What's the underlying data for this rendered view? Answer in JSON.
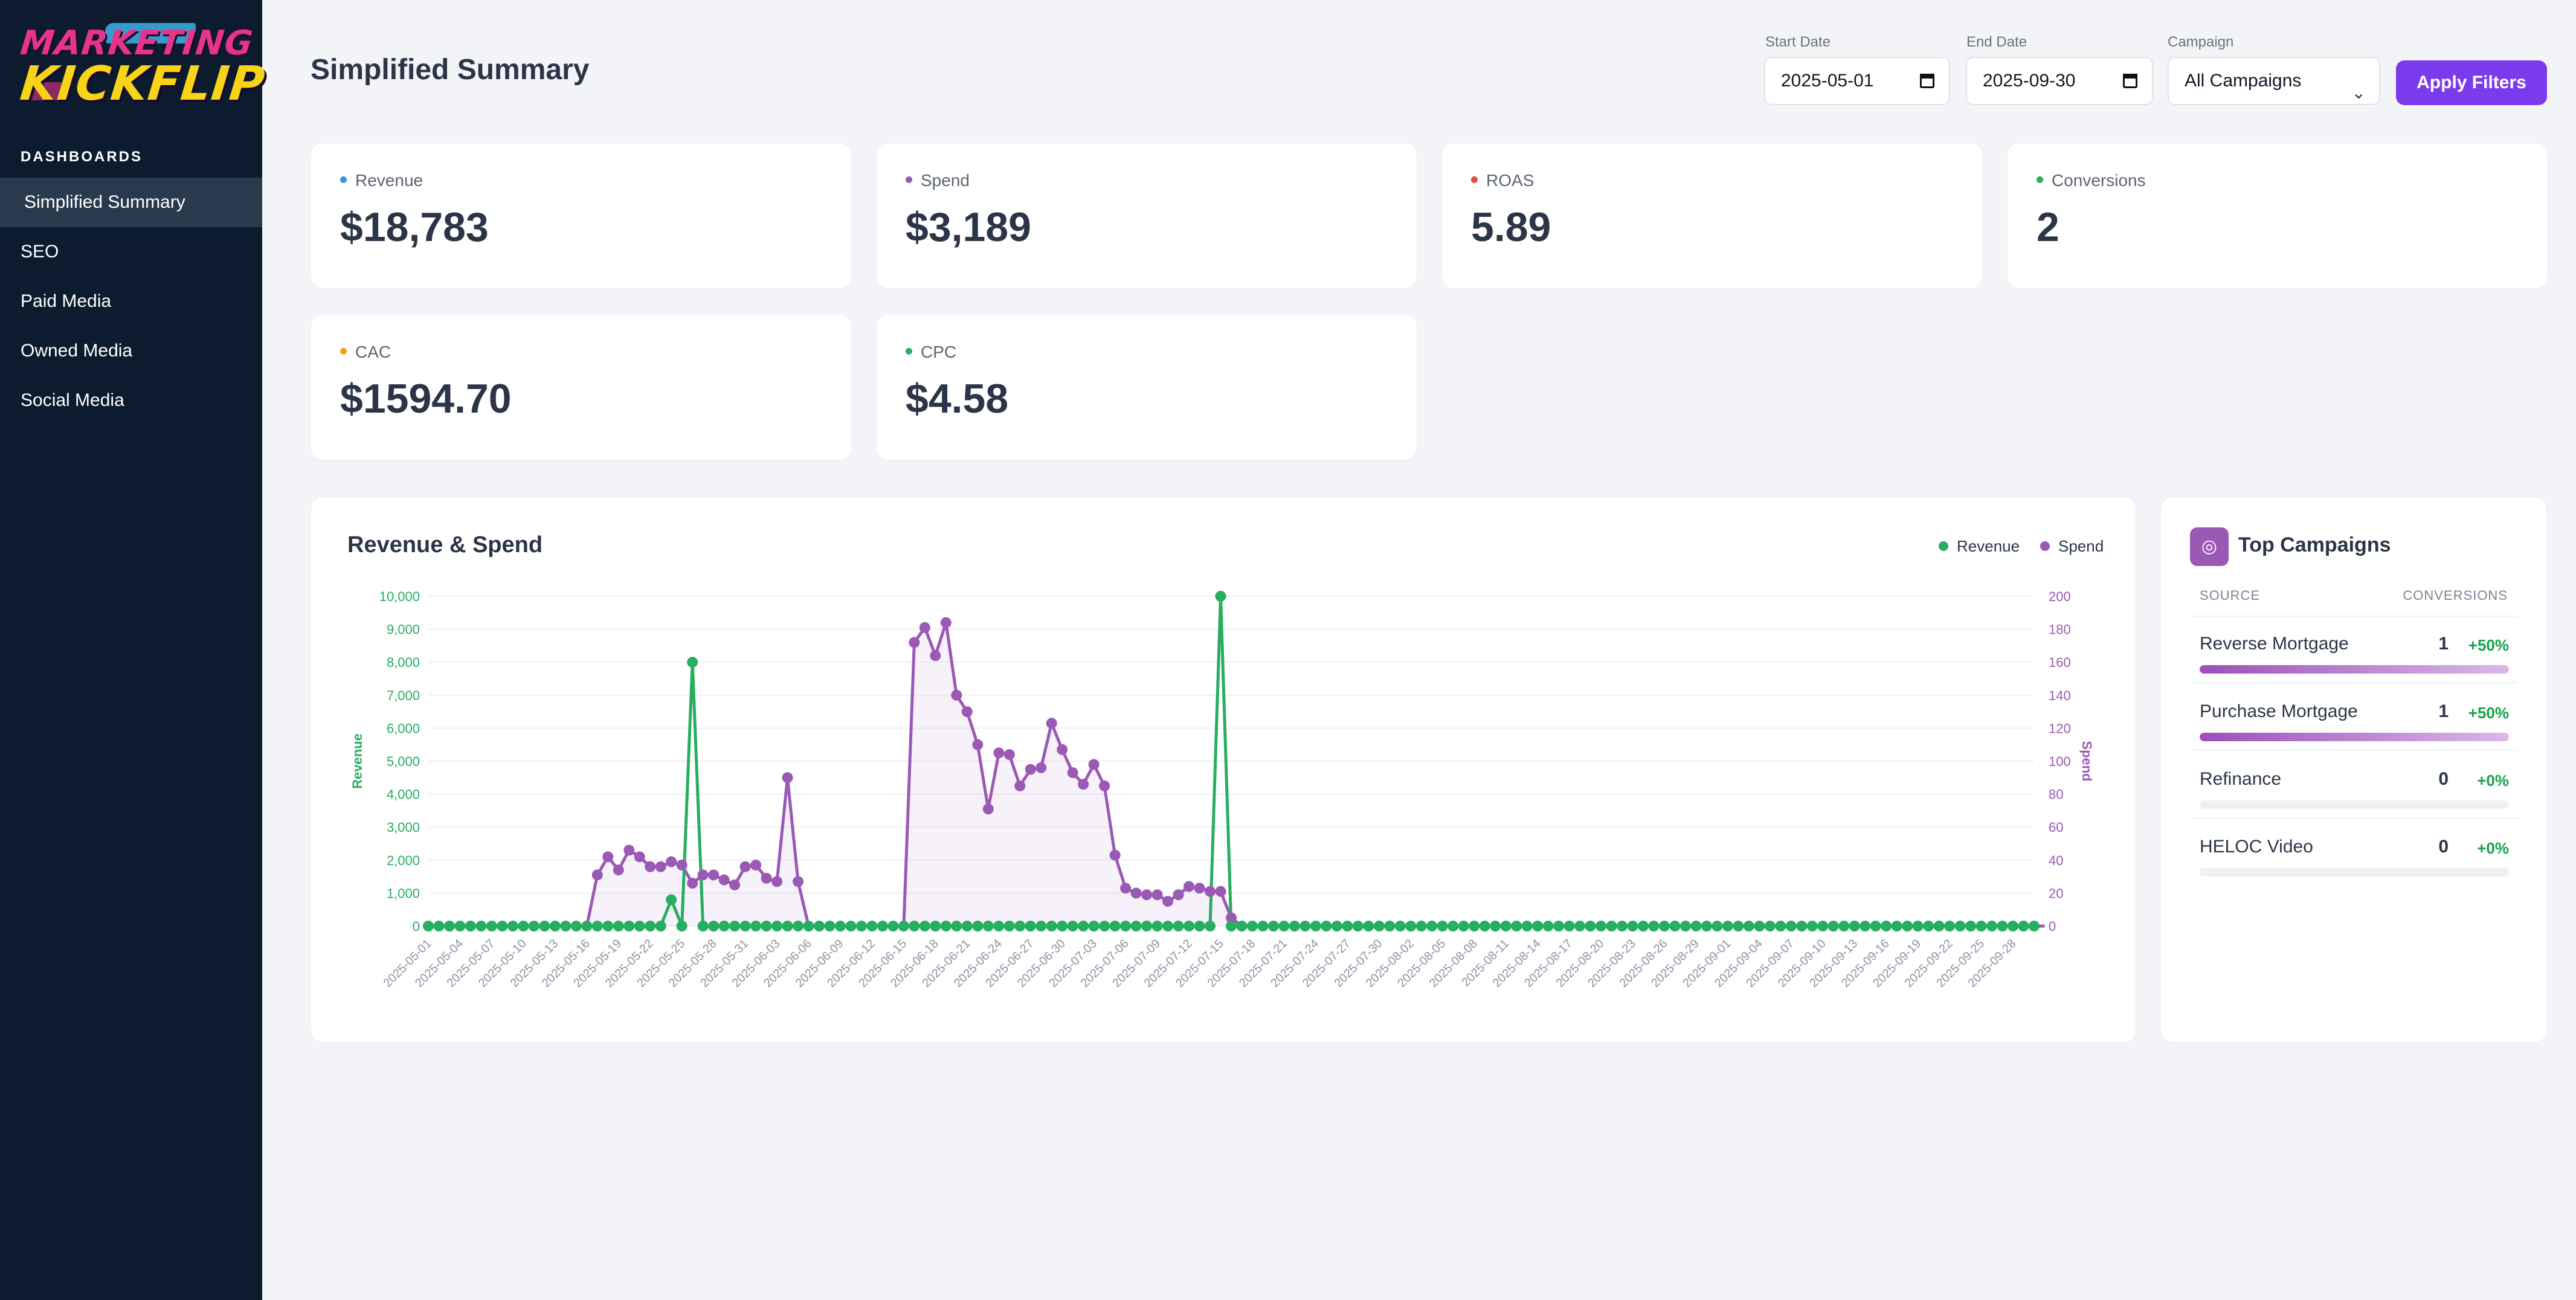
{
  "brand": {
    "line1": "MARKETING",
    "line2": "KICKFLIP"
  },
  "sidebar": {
    "heading": "DASHBOARDS",
    "items": [
      {
        "label": "Simplified Summary",
        "active": true
      },
      {
        "label": "SEO",
        "active": false
      },
      {
        "label": "Paid Media",
        "active": false
      },
      {
        "label": "Owned Media",
        "active": false
      },
      {
        "label": "Social Media",
        "active": false
      }
    ]
  },
  "header": {
    "title": "Simplified Summary",
    "filters": {
      "start_label": "Start Date",
      "start_value": "2025-05-01",
      "end_label": "End Date",
      "end_value": "2025-09-30",
      "campaign_label": "Campaign",
      "campaign_value": "All Campaigns",
      "apply_label": "Apply Filters"
    }
  },
  "kpis": [
    {
      "label": "Revenue",
      "value": "$18,783",
      "color": "#3498db"
    },
    {
      "label": "Spend",
      "value": "$3,189",
      "color": "#9b59b6"
    },
    {
      "label": "ROAS",
      "value": "5.89",
      "color": "#e74c3c"
    },
    {
      "label": "Conversions",
      "value": "2",
      "color": "#27ae60"
    },
    {
      "label": "CAC",
      "value": "$1594.70",
      "color": "#f39c12"
    },
    {
      "label": "CPC",
      "value": "$4.58",
      "color": "#27ae60"
    }
  ],
  "chart_panel": {
    "title": "Revenue & Spend"
  },
  "chart_data": {
    "type": "line",
    "title": "Revenue & Spend",
    "ylabel": "Revenue",
    "y2label": "Spend",
    "ylim": [
      0,
      10000
    ],
    "y2lim": [
      0,
      200
    ],
    "yticks": [
      "0",
      "1,000",
      "2,000",
      "3,000",
      "4,000",
      "5,000",
      "6,000",
      "7,000",
      "8,000",
      "9,000",
      "10,000"
    ],
    "y2ticks": [
      "0",
      "20",
      "40",
      "60",
      "80",
      "100",
      "120",
      "140",
      "160",
      "180",
      "200"
    ],
    "grid": true,
    "legend_position": "top-right",
    "x_start": "2025-05-01",
    "x_end": "2025-09-30",
    "xtick_labels": [
      "2025-05-01",
      "2025-05-04",
      "2025-05-07",
      "2025-05-10",
      "2025-05-13",
      "2025-05-16",
      "2025-05-19",
      "2025-05-22",
      "2025-05-25",
      "2025-05-28",
      "2025-05-31",
      "2025-06-03",
      "2025-06-06",
      "2025-06-09",
      "2025-06-12",
      "2025-06-15",
      "2025-06-18",
      "2025-06-21",
      "2025-06-24",
      "2025-06-27",
      "2025-06-30",
      "2025-07-03",
      "2025-07-06",
      "2025-07-09",
      "2025-07-12",
      "2025-07-15",
      "2025-07-18",
      "2025-07-21",
      "2025-07-24",
      "2025-07-27",
      "2025-07-30",
      "2025-08-02",
      "2025-08-05",
      "2025-08-08",
      "2025-08-11",
      "2025-08-14",
      "2025-08-17",
      "2025-08-20",
      "2025-08-23",
      "2025-08-26",
      "2025-08-29",
      "2025-09-01",
      "2025-09-04",
      "2025-09-07",
      "2025-09-10",
      "2025-09-13",
      "2025-09-16",
      "2025-09-19",
      "2025-09-22",
      "2025-09-25",
      "2025-09-28"
    ],
    "series": [
      {
        "name": "Revenue",
        "color": "#27ae60",
        "axis": "left",
        "values": [
          0,
          0,
          0,
          0,
          0,
          0,
          0,
          0,
          0,
          0,
          0,
          0,
          0,
          0,
          0,
          0,
          0,
          0,
          0,
          0,
          0,
          0,
          0,
          800,
          0,
          8000,
          0,
          0,
          0,
          0,
          0,
          0,
          0,
          0,
          0,
          0,
          0,
          0,
          0,
          0,
          0,
          0,
          0,
          0,
          0,
          0,
          0,
          0,
          0,
          0,
          0,
          0,
          0,
          0,
          0,
          0,
          0,
          0,
          0,
          0,
          0,
          0,
          0,
          0,
          0,
          0,
          0,
          0,
          0,
          0,
          0,
          0,
          0,
          0,
          0,
          10000,
          0,
          0,
          0,
          0,
          0,
          0,
          0,
          0,
          0,
          0,
          0,
          0,
          0,
          0,
          0,
          0,
          0,
          0,
          0,
          0,
          0,
          0,
          0,
          0,
          0,
          0,
          0,
          0,
          0,
          0,
          0,
          0,
          0,
          0,
          0,
          0,
          0,
          0,
          0,
          0,
          0,
          0,
          0,
          0,
          0,
          0,
          0,
          0,
          0,
          0,
          0,
          0,
          0,
          0,
          0,
          0,
          0,
          0,
          0,
          0,
          0,
          0,
          0,
          0,
          0,
          0,
          0,
          0,
          0,
          0,
          0,
          0,
          0,
          0,
          0,
          0,
          0
        ]
      },
      {
        "name": "Spend",
        "color": "#9b59b6",
        "axis": "right",
        "values": [
          0,
          0,
          0,
          0,
          0,
          0,
          0,
          0,
          0,
          0,
          0,
          0,
          0,
          0,
          0,
          0,
          31,
          42,
          34,
          46,
          42,
          36,
          36,
          39,
          37,
          26,
          31,
          31,
          28,
          25,
          36,
          37,
          29,
          27,
          90,
          27,
          0,
          0,
          0,
          0,
          0,
          0,
          0,
          0,
          0,
          0,
          172,
          181,
          164,
          184,
          140,
          130,
          110,
          71,
          105,
          104,
          85,
          95,
          96,
          123,
          107,
          93,
          86,
          98,
          85,
          43,
          23,
          20,
          19,
          19,
          15,
          19,
          24,
          23,
          21,
          21,
          5,
          0,
          0,
          0,
          0,
          0,
          0,
          0,
          0,
          0,
          0,
          0,
          0,
          0,
          0,
          0,
          0,
          0,
          0,
          0,
          0,
          0,
          0,
          0,
          0,
          0,
          0,
          0,
          0,
          0,
          0,
          0,
          0,
          0,
          0,
          0,
          0,
          0,
          0,
          0,
          0,
          0,
          0,
          0,
          0,
          0,
          0,
          0,
          0,
          0,
          0,
          0,
          0,
          0,
          0,
          0,
          0,
          0,
          0,
          0,
          0,
          0,
          0,
          0,
          0,
          0,
          0,
          0,
          0,
          0,
          0,
          0,
          0,
          0,
          0,
          0,
          0,
          0
        ]
      }
    ]
  },
  "top_campaigns": {
    "title": "Top Campaigns",
    "col_source": "SOURCE",
    "col_conversions": "CONVERSIONS",
    "rows": [
      {
        "name": "Reverse Mortgage",
        "conversions": "1",
        "change": "+50%",
        "share": 1.0
      },
      {
        "name": "Purchase Mortgage",
        "conversions": "1",
        "change": "+50%",
        "share": 1.0
      },
      {
        "name": "Refinance",
        "conversions": "0",
        "change": "+0%",
        "share": 0
      },
      {
        "name": "HELOC Video",
        "conversions": "0",
        "change": "+0%",
        "share": 0
      }
    ]
  }
}
